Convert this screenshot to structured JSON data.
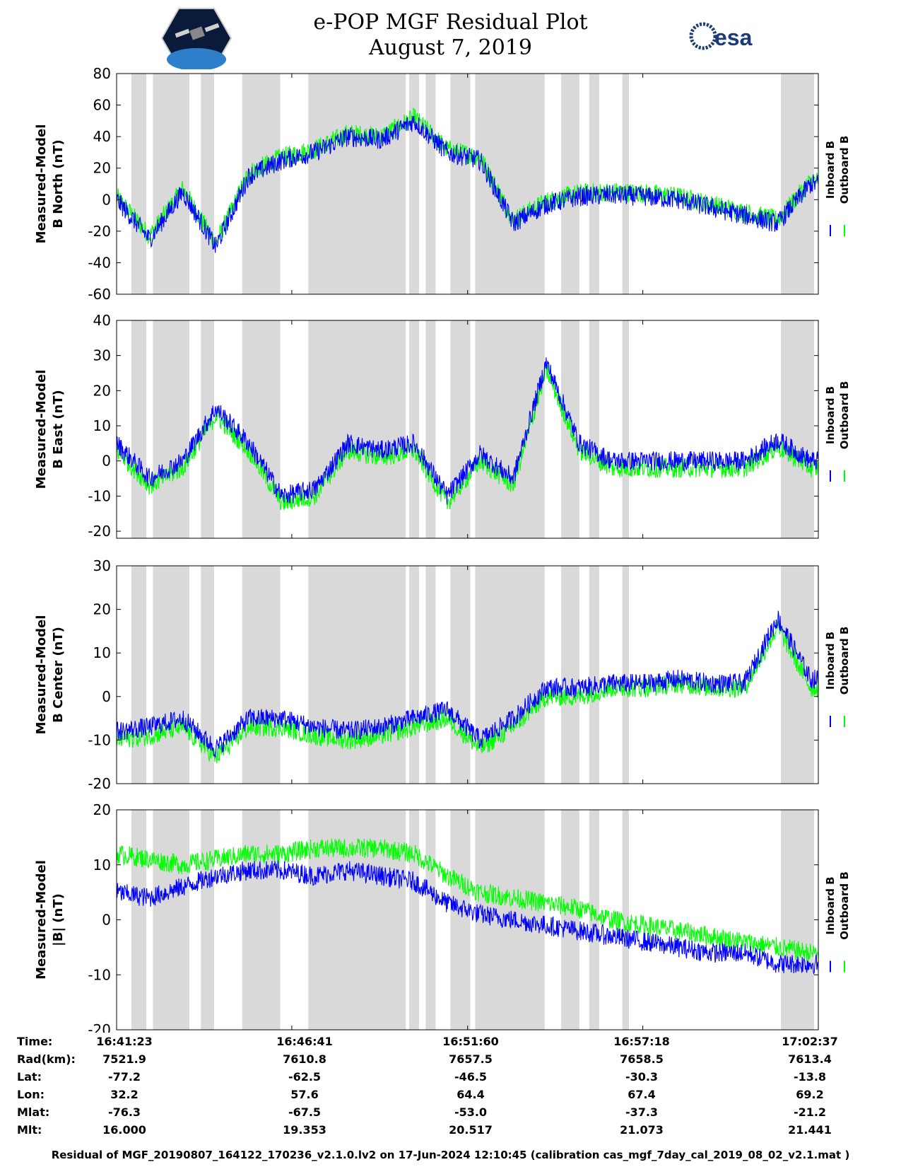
{
  "header": {
    "title_line1": "e-POP MGF Residual Plot",
    "title_line2": "August 7, 2019",
    "left_logo": "cassiope-mission-logo",
    "right_logo": "esa-logo",
    "right_logo_text": "esa"
  },
  "colors": {
    "inboard": "#0000ff",
    "outboard": "#00ff00",
    "shade": "#d9d9d9"
  },
  "chart_data": [
    {
      "type": "line",
      "ylabel_line1": "Measured-Model",
      "ylabel_line2": "B North (nT)",
      "ylim": [
        -60,
        80
      ],
      "yticks": [
        80,
        60,
        40,
        20,
        0,
        -20,
        -40,
        -60
      ],
      "legend": [
        "Inboard B",
        "Outboard B"
      ],
      "x_minutes": [
        0,
        1,
        2,
        3,
        4,
        5,
        6,
        7,
        8,
        9,
        10,
        11,
        12,
        13,
        14,
        15,
        16,
        17,
        18,
        19,
        20,
        21
      ],
      "series": [
        {
          "name": "Inboard B",
          "values": [
            0,
            -25,
            5,
            -30,
            15,
            25,
            30,
            40,
            38,
            50,
            30,
            25,
            -15,
            -3,
            2,
            3,
            2,
            0,
            -5,
            -10,
            -15,
            10
          ]
        },
        {
          "name": "Outboard B",
          "values": [
            2,
            -23,
            7,
            -28,
            17,
            27,
            32,
            42,
            40,
            52,
            32,
            27,
            -13,
            -1,
            4,
            5,
            4,
            2,
            -3,
            -8,
            -13,
            12
          ]
        }
      ]
    },
    {
      "type": "line",
      "ylabel_line1": "Measured-Model",
      "ylabel_line2": "B East (nT)",
      "ylim": [
        -22,
        40
      ],
      "yticks": [
        40,
        30,
        20,
        10,
        0,
        -10,
        -20
      ],
      "legend": [
        "Inboard B",
        "Outboard B"
      ],
      "x_minutes": [
        0,
        1,
        2,
        3,
        4,
        5,
        6,
        7,
        8,
        9,
        10,
        11,
        12,
        13,
        14,
        15,
        16,
        17,
        18,
        19,
        20,
        21
      ],
      "series": [
        {
          "name": "Inboard B",
          "values": [
            5,
            -5,
            0,
            15,
            5,
            -10,
            -8,
            5,
            3,
            5,
            -10,
            2,
            -5,
            28,
            5,
            0,
            0,
            0,
            0,
            0,
            6,
            0
          ]
        },
        {
          "name": "Outboard B",
          "values": [
            3,
            -7,
            -2,
            13,
            3,
            -12,
            -10,
            3,
            1,
            3,
            -12,
            0,
            -7,
            26,
            3,
            -2,
            -2,
            -2,
            -2,
            -2,
            4,
            -2
          ]
        }
      ]
    },
    {
      "type": "line",
      "ylabel_line1": "Measured-Model",
      "ylabel_line2": "B Center (nT)",
      "ylim": [
        -20,
        30
      ],
      "yticks": [
        30,
        20,
        10,
        0,
        -10,
        -20
      ],
      "legend": [
        "Inboard B",
        "Outboard B"
      ],
      "x_minutes": [
        0,
        1,
        2,
        3,
        4,
        5,
        6,
        7,
        8,
        9,
        10,
        11,
        12,
        13,
        14,
        15,
        16,
        17,
        18,
        19,
        20,
        21
      ],
      "series": [
        {
          "name": "Inboard B",
          "values": [
            -8,
            -7,
            -5,
            -12,
            -5,
            -5,
            -7,
            -8,
            -7,
            -5,
            -3,
            -10,
            -5,
            2,
            2,
            3,
            3,
            4,
            3,
            3,
            18,
            4
          ]
        },
        {
          "name": "Outboard B",
          "values": [
            -10,
            -9,
            -7,
            -14,
            -7,
            -7,
            -9,
            -10,
            -9,
            -7,
            -5,
            -12,
            -7,
            0,
            0,
            2,
            2,
            3,
            2,
            2,
            16,
            2
          ]
        }
      ]
    },
    {
      "type": "line",
      "ylabel_line1": "Measured-Model",
      "ylabel_line2": "|B| (nT)",
      "ylim": [
        -20,
        20
      ],
      "yticks": [
        20,
        10,
        0,
        -10,
        -20
      ],
      "legend": [
        "Inboard B",
        "Outboard B"
      ],
      "x_minutes": [
        0,
        1,
        2,
        3,
        4,
        5,
        6,
        7,
        8,
        9,
        10,
        11,
        12,
        13,
        14,
        15,
        16,
        17,
        18,
        19,
        20,
        21
      ],
      "series": [
        {
          "name": "Inboard B",
          "values": [
            5,
            4,
            6,
            8,
            9,
            9,
            8,
            9,
            8,
            7,
            3,
            1,
            0,
            -1,
            -2,
            -3,
            -4,
            -5,
            -6,
            -6,
            -8,
            -8
          ]
        },
        {
          "name": "Outboard B",
          "values": [
            12,
            11,
            10,
            11,
            12,
            12,
            13,
            13,
            13,
            12,
            8,
            5,
            4,
            3,
            2,
            0,
            -1,
            -2,
            -3,
            -4,
            -5,
            -6
          ]
        }
      ]
    }
  ],
  "shaded_intervals_minutes": [
    [
      0.45,
      0.9
    ],
    [
      1.1,
      2.2
    ],
    [
      2.55,
      2.95
    ],
    [
      3.8,
      4.95
    ],
    [
      5.8,
      8.75
    ],
    [
      8.85,
      9.15
    ],
    [
      9.35,
      9.65
    ],
    [
      10.1,
      10.7
    ],
    [
      10.85,
      12.95
    ],
    [
      13.45,
      14.0
    ],
    [
      14.3,
      14.6
    ],
    [
      15.3,
      15.5
    ],
    [
      20.1,
      21.1
    ]
  ],
  "info_table": {
    "labels": [
      "Time:",
      "Rad(km):",
      "Lat:",
      "Lon:",
      "Mlat:",
      "Mlt:"
    ],
    "columns": [
      [
        "16:41:23",
        "7521.9",
        "-77.2",
        "32.2",
        "-76.3",
        "16.000"
      ],
      [
        "16:46:41",
        "7610.8",
        "-62.5",
        "57.6",
        "-67.5",
        "19.353"
      ],
      [
        "16:51:60",
        "7657.5",
        "-46.5",
        "64.4",
        "-53.0",
        "20.517"
      ],
      [
        "16:57:18",
        "7658.5",
        "-30.3",
        "67.4",
        "-37.3",
        "21.073"
      ],
      [
        "17:02:37",
        "7613.4",
        "-13.8",
        "69.2",
        "-21.2",
        "21.441"
      ]
    ]
  },
  "footer": "Residual of MGF_20190807_164122_170236_v2.1.0.lv2 on 17-Jun-2024 12:10:45 (calibration cas_mgf_7day_cal_2019_08_02_v2.1.mat )"
}
